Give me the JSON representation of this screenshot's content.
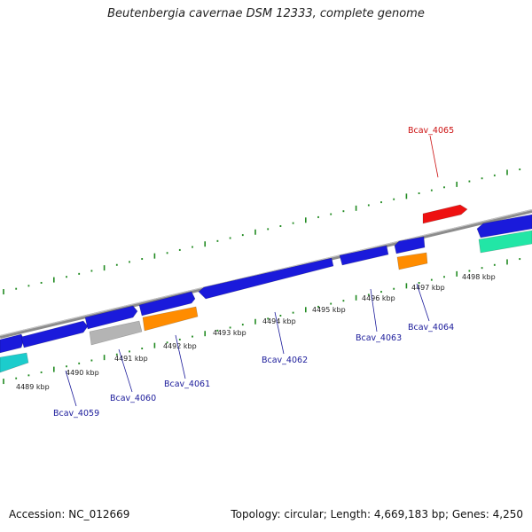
{
  "title": "Beutenbergia cavernae DSM 12333, complete genome",
  "footer": {
    "accession": "Accession: NC_012669",
    "summary": "Topology: circular; Length: 4,669,183 bp; Genes: 4,250"
  },
  "colors": {
    "forward_gene": "#1a1adb",
    "highlight_gene": "#ee1111",
    "orange_gene": "#ff8c00",
    "gray_gene": "#b4b4b4",
    "cyan_gene": "#1ccccc",
    "mint_gene": "#22e6a6",
    "tick": "#228b22",
    "label_blue": "#1a1a9a",
    "label_red": "#cc1111"
  },
  "kbp_labels": [
    "4489 kbp",
    "4490 kbp",
    "4491 kbp",
    "4492 kbp",
    "4493 kbp",
    "4494 kbp",
    "4495 kbp",
    "4496 kbp",
    "4497 kbp",
    "4498 kbp"
  ],
  "gene_labels": [
    "Bcav_4059",
    "Bcav_4060",
    "Bcav_4061",
    "Bcav_4062",
    "Bcav_4063",
    "Bcav_4064",
    "Bcav_4065"
  ]
}
